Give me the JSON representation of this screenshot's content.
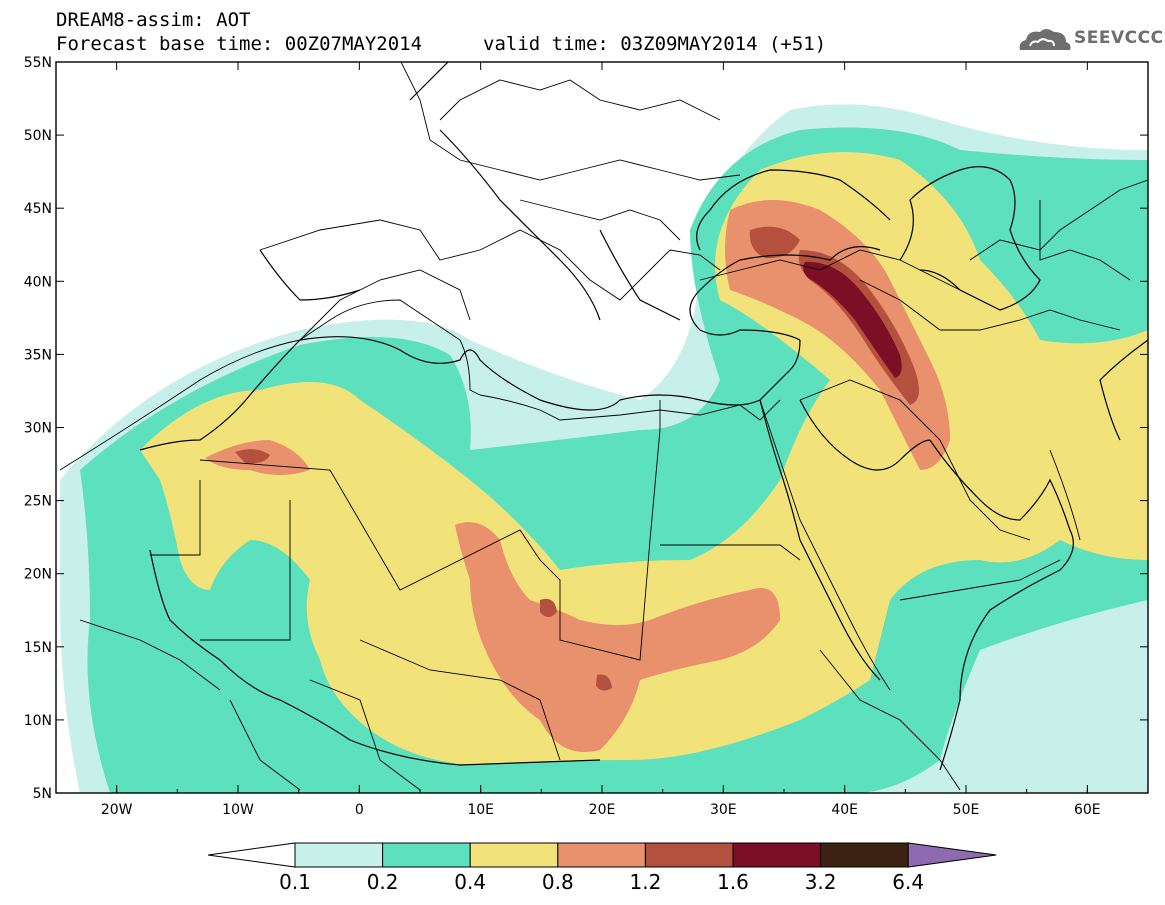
{
  "header": {
    "title_line1": "DREAM8-assim: AOT",
    "title_line2": "Forecast base time: 00Z07MAY2014",
    "valid_time": "valid time: 03Z09MAY2014 (+51)",
    "logo_text": "SEEVCCC"
  },
  "map": {
    "lat_labels": [
      "55N",
      "50N",
      "45N",
      "40N",
      "35N",
      "30N",
      "25N",
      "20N",
      "15N",
      "10N",
      "5N"
    ],
    "lon_labels": [
      "20W",
      "10W",
      "0",
      "10E",
      "20E",
      "30E",
      "40E",
      "50E",
      "60E"
    ],
    "extent": {
      "lon_min": -25,
      "lon_max": 65,
      "lat_min": 5,
      "lat_max": 55
    }
  },
  "legend": {
    "labels": [
      "0.1",
      "0.2",
      "0.4",
      "0.8",
      "1.2",
      "1.6",
      "3.2",
      "6.4"
    ],
    "colors": [
      "#c8f0ea",
      "#5ce0bd",
      "#f2e27a",
      "#e9906c",
      "#b4513e",
      "#7a0f26",
      "#3d2314",
      "#8e6bb0"
    ]
  }
}
